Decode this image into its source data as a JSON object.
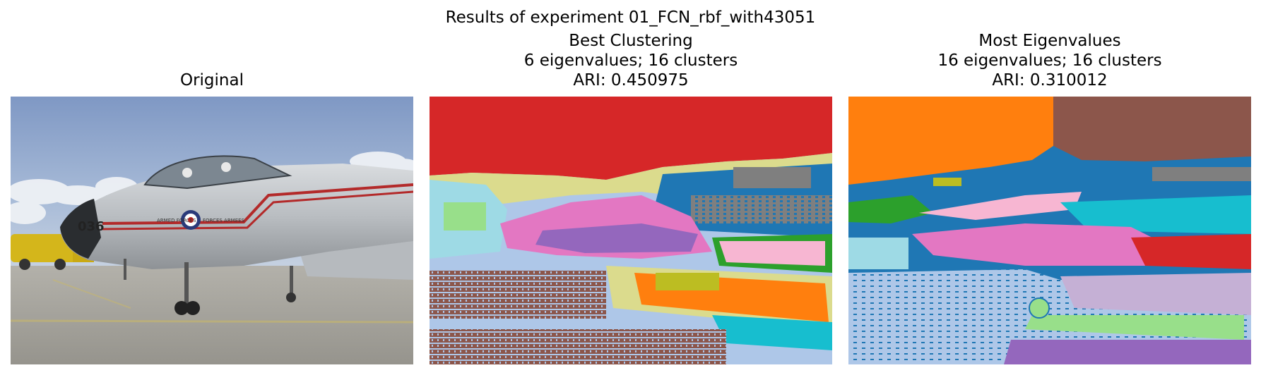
{
  "figure": {
    "suptitle": "Results of experiment 01_FCN_rbf_with43051"
  },
  "panels": [
    {
      "title_lines": [
        "Original"
      ],
      "content": "photograph"
    },
    {
      "title_lines": [
        "Best Clustering",
        "6 eigenvalues; 16 clusters",
        "ARI: 0.450975"
      ],
      "eigenvalues": 6,
      "clusters": 16,
      "ari": 0.450975
    },
    {
      "title_lines": [
        "Most Eigenvalues",
        "16 eigenvalues; 16 clusters",
        "ARI: 0.310012"
      ],
      "eigenvalues": 16,
      "clusters": 16,
      "ari": 0.310012
    }
  ],
  "photo_text": {
    "tail_number": "036",
    "roundel_left": "ARMED FORCES",
    "roundel_right": "FORCES ARMEES"
  },
  "colors": {
    "tab_blue": "#1f77b4",
    "tab_orange": "#ff7f0e",
    "tab_green": "#2ca02c",
    "tab_red": "#d62728",
    "tab_purple": "#9467bd",
    "tab_brown": "#8c564b",
    "tab_pink": "#e377c2",
    "tab_gray": "#7f7f7f",
    "tab_olive": "#bcbd22",
    "tab_cyan": "#17becf",
    "light_blue": "#aec7e8",
    "light_green": "#98df8a",
    "light_pink": "#f7b6d2",
    "khaki": "#dbdb8d",
    "light_cyan": "#9edae5",
    "light_purple": "#c5b0d5"
  }
}
